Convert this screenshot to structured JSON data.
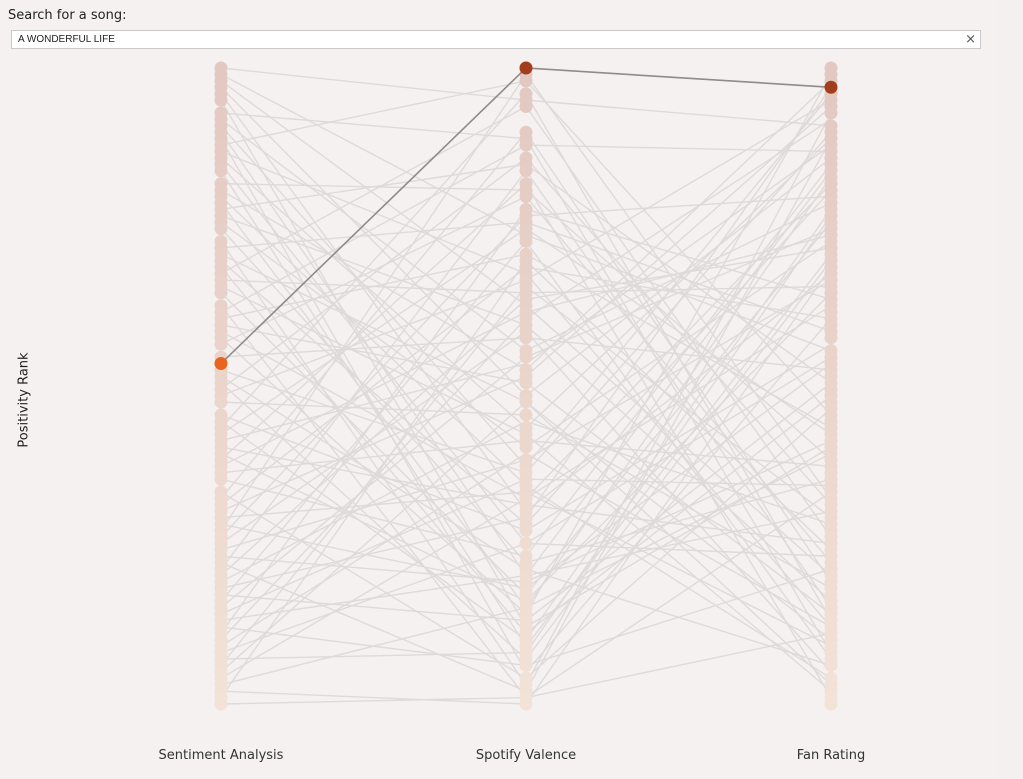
{
  "search": {
    "label": "Search for a song:",
    "value": "A WONDERFUL LIFE",
    "clear_glyph": "×"
  },
  "chart_data": {
    "type": "parallel-coordinates",
    "ylabel": "Positivity Rank",
    "axes": [
      "Sentiment Analysis",
      "Spotify Valence",
      "Fan Rating"
    ],
    "rank_range": [
      1,
      100
    ],
    "highlighted_song": {
      "name": "A WONDERFUL LIFE",
      "ranks": [
        47,
        1,
        4
      ],
      "colors": [
        "#e8641f",
        "#a33e1c",
        "#a33e1c"
      ]
    },
    "colors": {
      "line": "#dedad9",
      "highlight_line": "#8f8b8a",
      "rank_top": "#e2c8c0",
      "rank_bottom": "#f3e2d6"
    },
    "point_ranks": [
      [
        1,
        2,
        3,
        4,
        5,
        6,
        8,
        9,
        10,
        11,
        12,
        13,
        14,
        15,
        16,
        17,
        19,
        20,
        21,
        22,
        23,
        24,
        25,
        26,
        28,
        29,
        30,
        31,
        32,
        33,
        34,
        35,
        36,
        38,
        39,
        40,
        41,
        42,
        43,
        44,
        46,
        47,
        48,
        49,
        50,
        51,
        52,
        53,
        55,
        56,
        57,
        58,
        59,
        60,
        61,
        62,
        63,
        64,
        65,
        67,
        68,
        69,
        70,
        71,
        72,
        73,
        74,
        75,
        76,
        77,
        78,
        79,
        80,
        81,
        82,
        83,
        84,
        85,
        86,
        87,
        88,
        89,
        90,
        91,
        92,
        93,
        94,
        95,
        96,
        97,
        98,
        99,
        100
      ],
      [
        1,
        2,
        3,
        5,
        6,
        7,
        11,
        12,
        13,
        15,
        16,
        17,
        19,
        20,
        21,
        23,
        24,
        25,
        26,
        27,
        28,
        30,
        31,
        32,
        33,
        34,
        35,
        36,
        37,
        38,
        39,
        40,
        41,
        42,
        43,
        45,
        46,
        48,
        49,
        50,
        52,
        53,
        55,
        57,
        58,
        59,
        60,
        62,
        63,
        64,
        65,
        66,
        67,
        68,
        69,
        70,
        71,
        72,
        73,
        75,
        77,
        78,
        79,
        80,
        81,
        82,
        83,
        84,
        85,
        86,
        87,
        88,
        89,
        90,
        91,
        92,
        93,
        94,
        96,
        97,
        98,
        99,
        100
      ],
      [
        1,
        2,
        3,
        4,
        5,
        6,
        7,
        8,
        10,
        11,
        12,
        13,
        14,
        15,
        16,
        17,
        18,
        19,
        20,
        21,
        22,
        23,
        24,
        25,
        26,
        27,
        28,
        29,
        30,
        31,
        32,
        33,
        34,
        35,
        36,
        37,
        38,
        39,
        40,
        41,
        42,
        43,
        45,
        46,
        47,
        48,
        49,
        50,
        51,
        52,
        53,
        54,
        55,
        56,
        57,
        58,
        59,
        60,
        61,
        62,
        63,
        64,
        65,
        66,
        67,
        68,
        69,
        70,
        71,
        72,
        73,
        74,
        75,
        76,
        77,
        78,
        79,
        80,
        81,
        82,
        83,
        84,
        85,
        86,
        87,
        88,
        89,
        90,
        91,
        92,
        93,
        94,
        96,
        97,
        98,
        99,
        100
      ]
    ],
    "lines": [
      [
        1,
        6,
        10
      ],
      [
        2,
        27,
        45
      ],
      [
        3,
        38,
        80
      ],
      [
        4,
        52,
        15
      ],
      [
        5,
        70,
        33
      ],
      [
        6,
        88,
        60
      ],
      [
        8,
        12,
        92
      ],
      [
        9,
        45,
        22
      ],
      [
        10,
        63,
        5
      ],
      [
        11,
        80,
        70
      ],
      [
        12,
        95,
        40
      ],
      [
        13,
        3,
        55
      ],
      [
        14,
        33,
        88
      ],
      [
        15,
        57,
        12
      ],
      [
        16,
        75,
        77
      ],
      [
        17,
        91,
        30
      ],
      [
        19,
        20,
        62
      ],
      [
        20,
        48,
        3
      ],
      [
        21,
        66,
        96
      ],
      [
        22,
        85,
        18
      ],
      [
        23,
        16,
        50
      ],
      [
        24,
        41,
        84
      ],
      [
        25,
        60,
        28
      ],
      [
        26,
        78,
        65
      ],
      [
        28,
        97,
        8
      ],
      [
        29,
        25,
        42
      ],
      [
        30,
        53,
        90
      ],
      [
        31,
        72,
        20
      ],
      [
        32,
        89,
        52
      ],
      [
        33,
        7,
        74
      ],
      [
        34,
        36,
        35
      ],
      [
        35,
        58,
        98
      ],
      [
        36,
        83,
        25
      ],
      [
        38,
        99,
        67
      ],
      [
        39,
        13,
        14
      ],
      [
        40,
        30,
        57
      ],
      [
        41,
        50,
        86
      ],
      [
        42,
        68,
        38
      ],
      [
        43,
        86,
        2
      ],
      [
        44,
        21,
        78
      ],
      [
        46,
        43,
        48
      ],
      [
        48,
        64,
        11
      ],
      [
        49,
        79,
        94
      ],
      [
        50,
        93,
        31
      ],
      [
        51,
        15,
        69
      ],
      [
        52,
        34,
        6
      ],
      [
        53,
        55,
        82
      ],
      [
        55,
        73,
        44
      ],
      [
        56,
        90,
        23
      ],
      [
        57,
        5,
        87
      ],
      [
        58,
        26,
        58
      ],
      [
        59,
        47,
        13
      ],
      [
        60,
        69,
        75
      ],
      [
        61,
        84,
        36
      ],
      [
        62,
        19,
        99
      ],
      [
        63,
        39,
        27
      ],
      [
        64,
        59,
        63
      ],
      [
        65,
        77,
        16
      ],
      [
        67,
        96,
        54
      ],
      [
        68,
        11,
        81
      ],
      [
        69,
        32,
        40
      ],
      [
        70,
        49,
        7
      ],
      [
        71,
        67,
        91
      ],
      [
        72,
        82,
        47
      ],
      [
        73,
        2,
        68
      ],
      [
        74,
        24,
        21
      ],
      [
        75,
        42,
        95
      ],
      [
        76,
        62,
        34
      ],
      [
        77,
        81,
        59
      ],
      [
        78,
        98,
        12
      ],
      [
        79,
        17,
        85
      ],
      [
        80,
        37,
        29
      ],
      [
        81,
        56,
        72
      ],
      [
        82,
        71,
        4
      ],
      [
        83,
        87,
        50
      ],
      [
        84,
        28,
        93
      ],
      [
        85,
        46,
        26
      ],
      [
        86,
        65,
        66
      ],
      [
        87,
        80,
        17
      ],
      [
        88,
        94,
        79
      ],
      [
        89,
        23,
        37
      ],
      [
        90,
        40,
        9
      ],
      [
        91,
        61,
        88
      ],
      [
        92,
        75,
        46
      ],
      [
        93,
        92,
        24
      ],
      [
        94,
        35,
        71
      ],
      [
        95,
        53,
        97
      ],
      [
        96,
        68,
        19
      ],
      [
        97,
        85,
        61
      ],
      [
        98,
        100,
        32
      ],
      [
        99,
        31,
        76
      ],
      [
        100,
        99,
        89
      ]
    ]
  }
}
